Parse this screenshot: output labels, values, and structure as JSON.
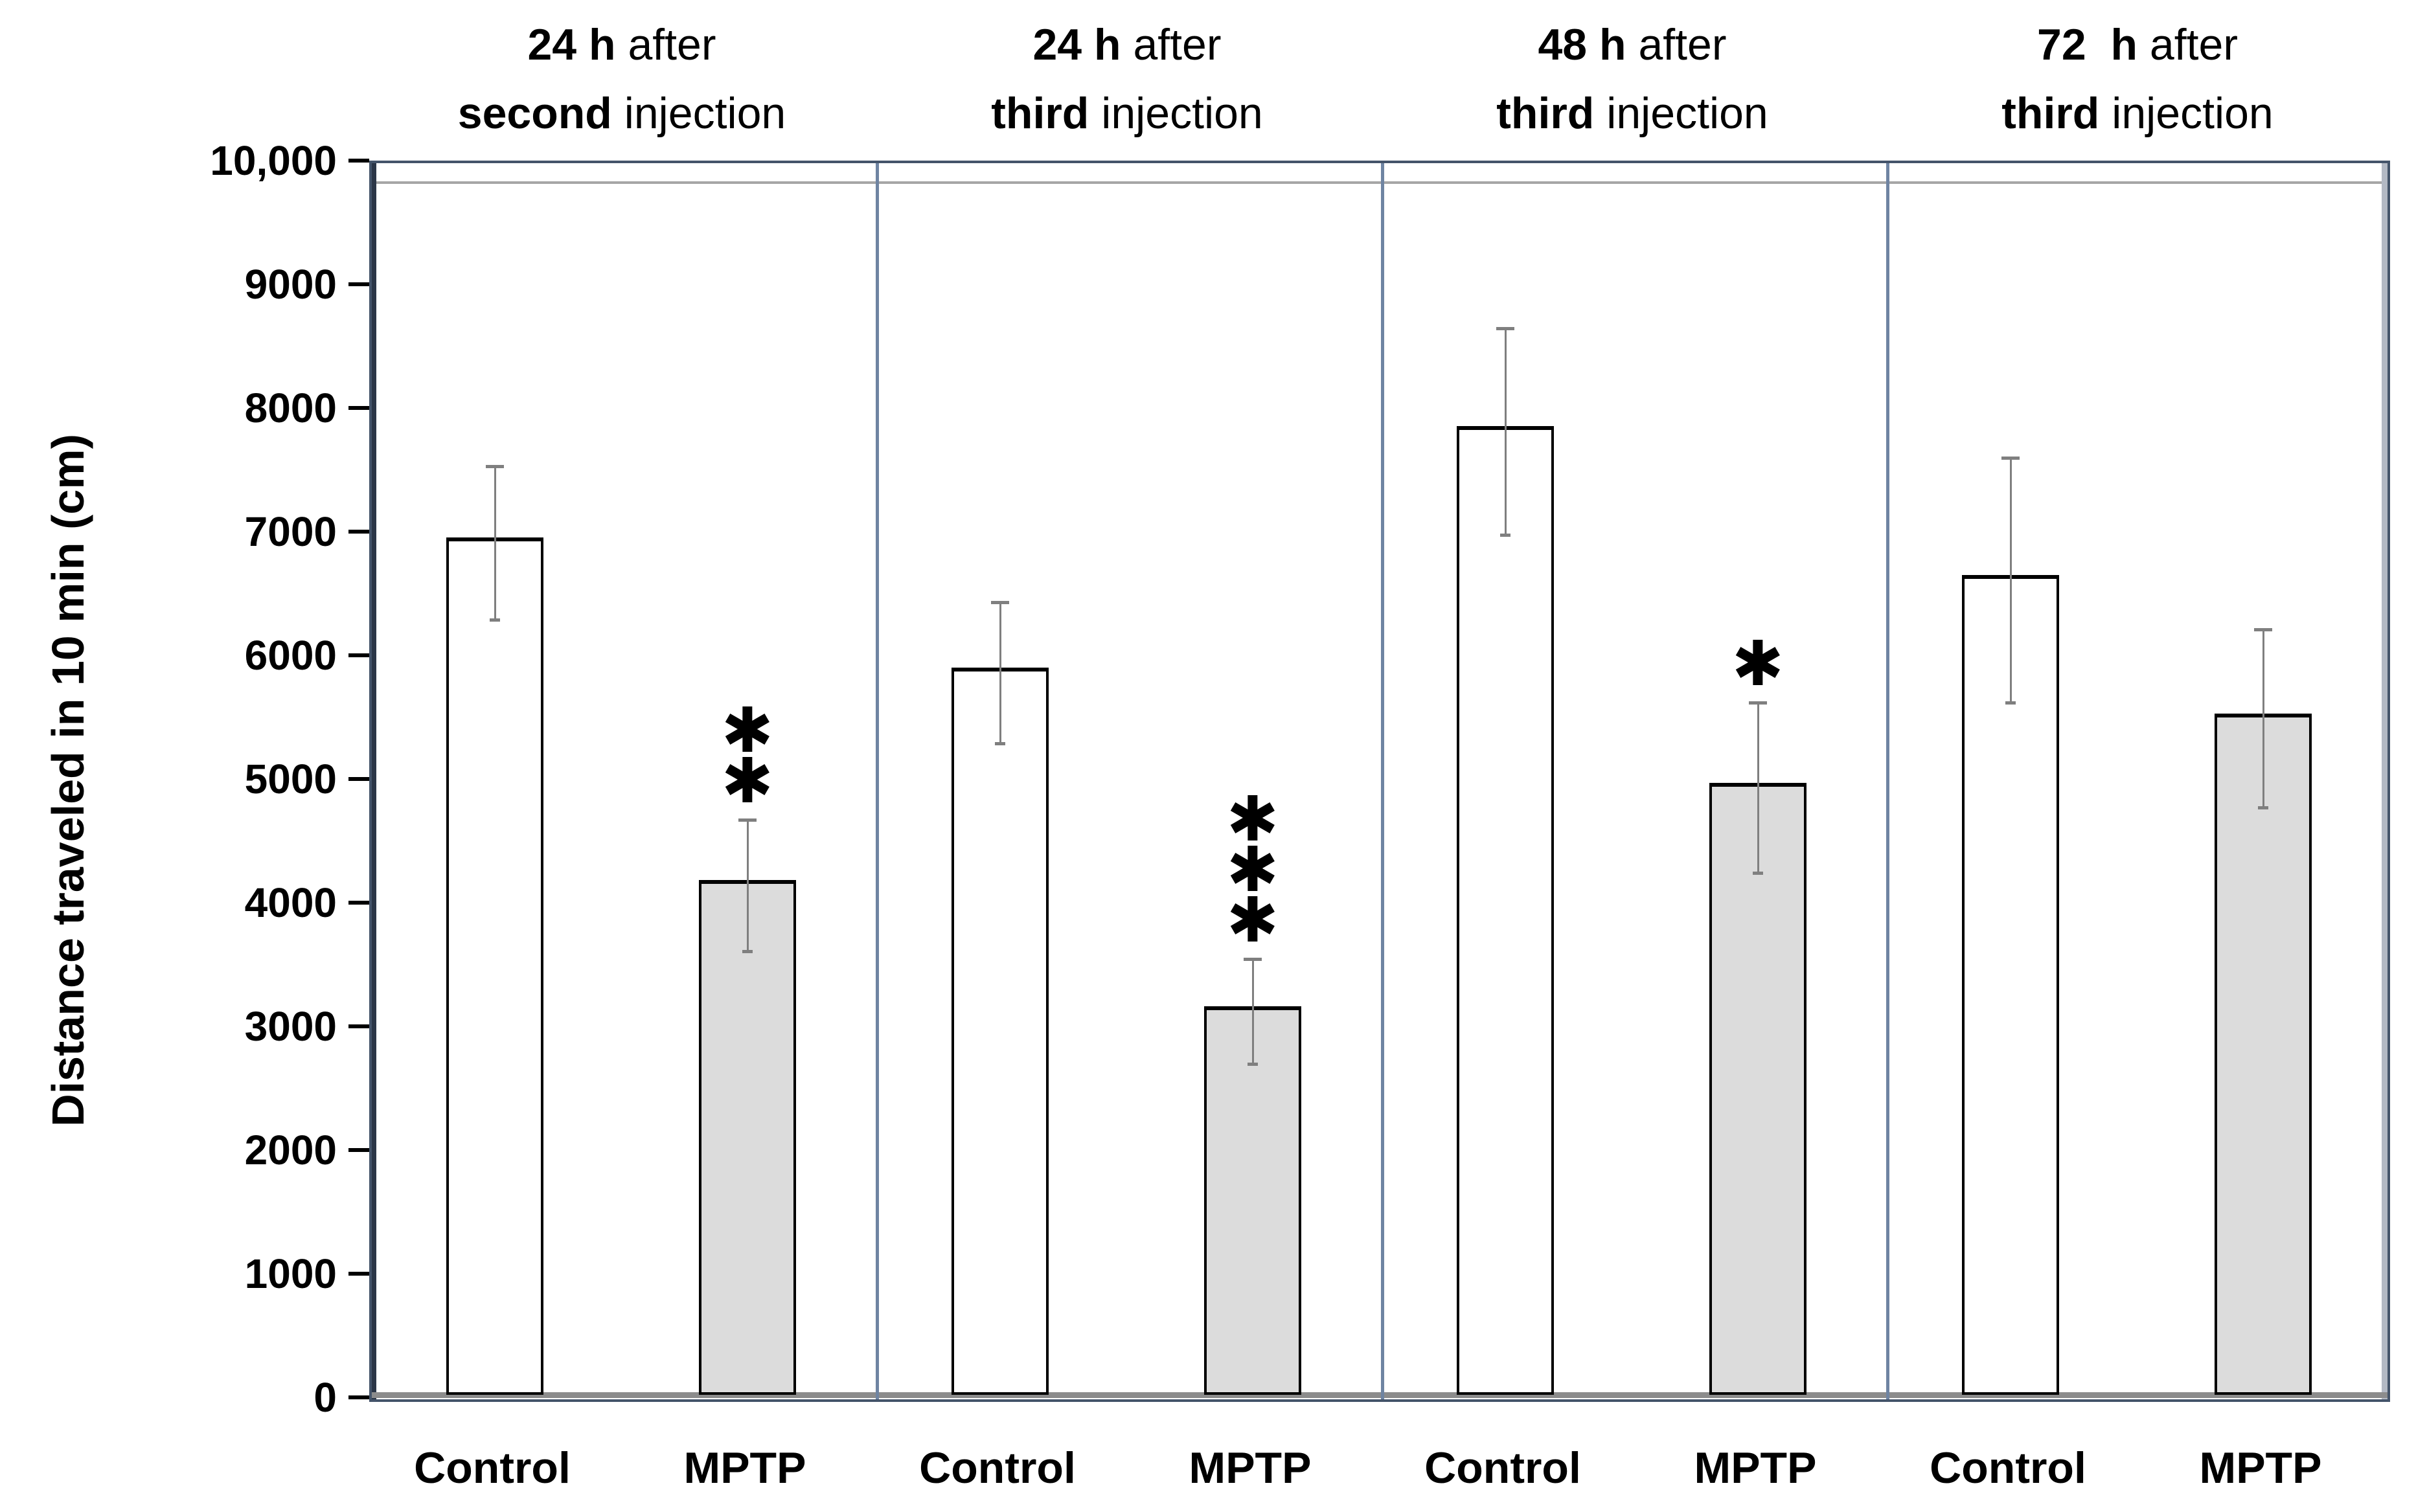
{
  "chart_data": {
    "type": "bar",
    "title": "",
    "xlabel": "",
    "ylabel": "Distance traveled in 10 min (cm)",
    "ylim": [
      0,
      10000
    ],
    "ytick_step": 1000,
    "ytick_labels_top_to_bottom": [
      "10,000",
      "9000",
      "8000",
      "7000",
      "6000",
      "5000",
      "4000",
      "3000",
      "2000",
      "1000",
      "0"
    ],
    "grid": "off",
    "legend": "none",
    "group_labels": [
      "Control",
      "MPTP"
    ],
    "categories": [
      "24 h after second injection",
      "24 h after third injection",
      "48 h after third injection",
      "72 h after third injection"
    ],
    "series": [
      {
        "name": "Control",
        "values": [
          6930,
          5880,
          7830,
          6630
        ],
        "errors": [
          620,
          570,
          835,
          990
        ]
      },
      {
        "name": "MPTP",
        "values": [
          4160,
          3140,
          4950,
          5510
        ],
        "errors": [
          530,
          425,
          690,
          720
        ]
      }
    ],
    "significance_on_mptp": [
      "**",
      "***",
      "*",
      ""
    ],
    "panels": [
      {
        "title_line1_bold": "24 h",
        "title_line1_rest": " after",
        "title_line2_bold": "second",
        "title_line2_rest": " injection",
        "bars": [
          {
            "group": "Control",
            "value": 6930,
            "error": 620,
            "significance": ""
          },
          {
            "group": "MPTP",
            "value": 4160,
            "error": 530,
            "significance": "**"
          }
        ]
      },
      {
        "title_line1_bold": "24 h",
        "title_line1_rest": " after",
        "title_line2_bold": "third",
        "title_line2_rest": " injection",
        "bars": [
          {
            "group": "Control",
            "value": 5880,
            "error": 570,
            "significance": ""
          },
          {
            "group": "MPTP",
            "value": 3140,
            "error": 425,
            "significance": "***"
          }
        ]
      },
      {
        "title_line1_bold": "48 h",
        "title_line1_rest": " after",
        "title_line2_bold": "third",
        "title_line2_rest": " injection",
        "bars": [
          {
            "group": "Control",
            "value": 7830,
            "error": 835,
            "significance": ""
          },
          {
            "group": "MPTP",
            "value": 4950,
            "error": 690,
            "significance": "*"
          }
        ]
      },
      {
        "title_line1_bold": "72  h",
        "title_line1_rest": " after",
        "title_line2_bold": "third",
        "title_line2_rest": " injection",
        "bars": [
          {
            "group": "Control",
            "value": 6630,
            "error": 990,
            "significance": ""
          },
          {
            "group": "MPTP",
            "value": 5510,
            "error": 720,
            "significance": ""
          }
        ]
      }
    ],
    "colors": {
      "control_fill": "#ffffff",
      "mptp_fill": "#dcdcdc",
      "bar_border": "#000000",
      "error_bar": "#7f7f7f",
      "frame": "#44546a",
      "divider": "#6f84a2",
      "axis_line": "#8c8c8c",
      "star": "#000000",
      "text": "#000000"
    },
    "significance_glyph": "✱"
  }
}
